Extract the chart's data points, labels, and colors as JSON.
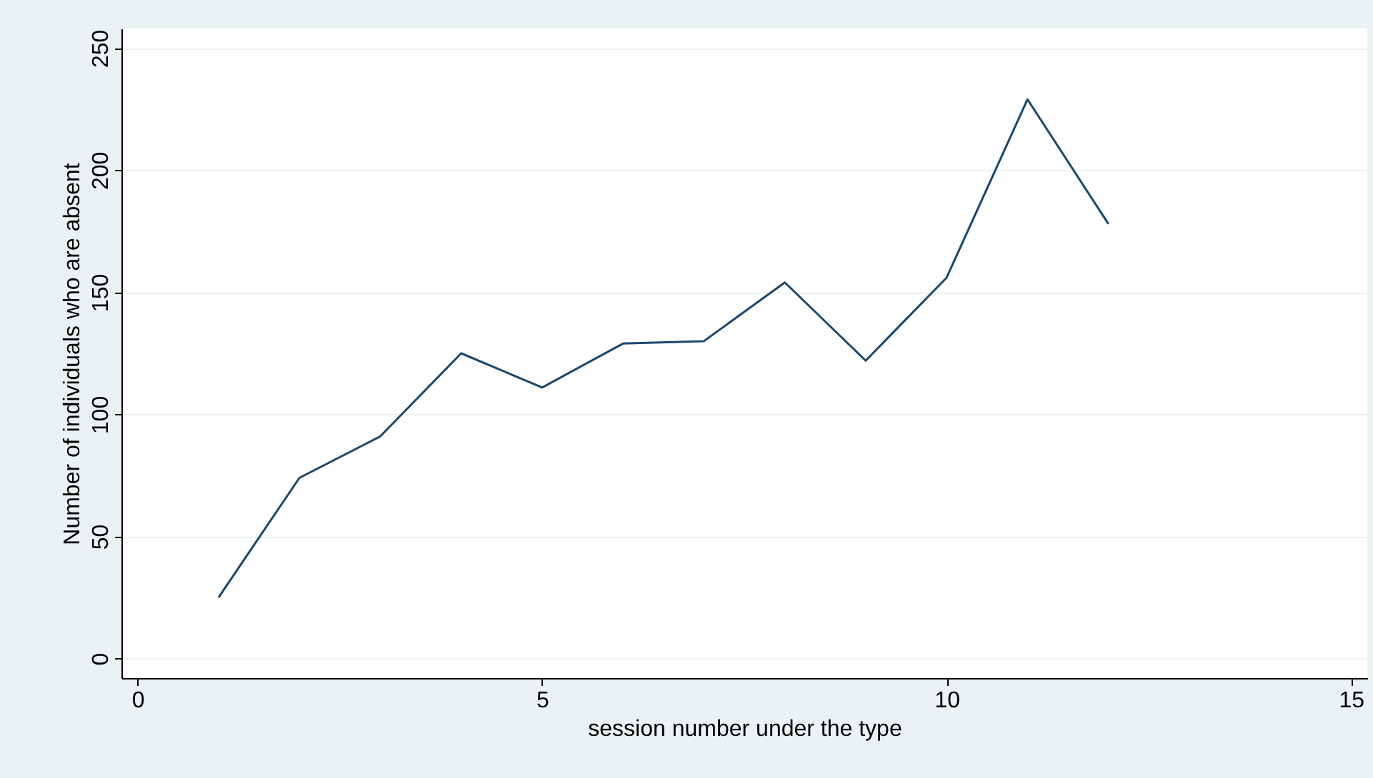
{
  "chart_data": {
    "type": "line",
    "xlabel": "session number under the type",
    "ylabel": "Number of individuals who are absent",
    "x": [
      1,
      2,
      3,
      4,
      5,
      6,
      7,
      8,
      9,
      10,
      11,
      12
    ],
    "series": [
      {
        "color": "#1a476f",
        "values": [
          25,
          74,
          91,
          125,
          111,
          129,
          130,
          154,
          122,
          156,
          229,
          178
        ]
      }
    ],
    "xlim": [
      -0.2,
      15.2
    ],
    "xticks": [
      0,
      5,
      10,
      15
    ],
    "ylim": [
      -8,
      258
    ],
    "yticks": [
      0,
      50,
      100,
      150,
      200,
      250
    ],
    "grid": "y",
    "marker": "none",
    "line_style": "solid"
  }
}
